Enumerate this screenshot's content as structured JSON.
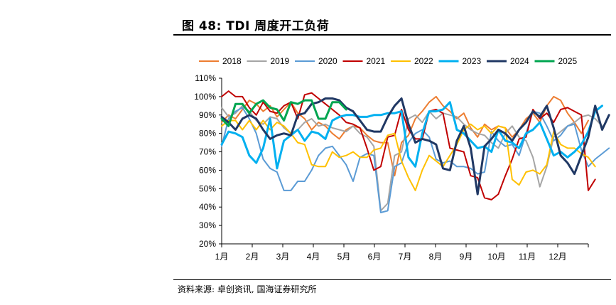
{
  "figure": {
    "title": "图 48:  TDI 周度开工负荷",
    "source": "资料来源: 卓创资讯, 国海证券研究所"
  },
  "chart_data": {
    "type": "line",
    "title": "",
    "xlabel": "",
    "ylabel": "",
    "ylim": [
      20,
      110
    ],
    "y_ticks": [
      "20%",
      "30%",
      "40%",
      "50%",
      "60%",
      "70%",
      "80%",
      "90%",
      "100%",
      "110%"
    ],
    "x_ticks": [
      "1月",
      "2月",
      "3月",
      "4月",
      "5月",
      "6月",
      "7月",
      "8月",
      "9月",
      "10月",
      "11月",
      "12月"
    ],
    "x_unit": "week",
    "legend_position": "top",
    "grid": false,
    "series": [
      {
        "name": "2018",
        "color": "#ED7D31",
        "values": [
          86,
          90,
          88,
          93,
          98,
          96,
          92,
          95,
          89,
          93,
          97,
          91,
          88,
          82,
          86,
          84,
          80,
          77,
          82,
          84,
          83,
          79,
          76,
          75,
          75,
          57,
          75,
          79,
          88,
          92,
          97,
          100,
          95,
          92,
          88,
          91,
          83,
          78,
          85,
          82,
          84,
          83,
          78,
          82,
          88,
          91,
          86,
          95,
          100,
          98,
          91,
          86,
          80,
          87
        ]
      },
      {
        "name": "2019",
        "color": "#A5A5A5",
        "values": [
          94,
          89,
          91,
          95,
          92,
          87,
          85,
          89,
          88,
          83,
          80,
          82,
          86,
          88,
          84,
          85,
          83,
          82,
          81,
          84,
          80,
          78,
          73,
          38,
          42,
          68,
          70,
          88,
          90,
          86,
          92,
          88,
          91,
          90,
          89,
          85,
          82,
          80,
          79,
          75,
          72,
          80,
          84,
          78,
          76,
          67,
          51,
          62,
          78,
          81,
          84,
          86,
          89,
          90,
          88,
          84
        ]
      },
      {
        "name": "2020",
        "color": "#5B9BD5",
        "values": [
          73,
          88,
          92,
          94,
          88,
          80,
          66,
          61,
          59,
          49,
          49,
          54,
          54,
          60,
          68,
          72,
          73,
          68,
          63,
          54,
          67,
          69,
          68,
          37,
          38,
          62,
          64,
          75,
          80,
          82,
          78,
          66,
          64,
          65,
          62,
          62,
          61,
          58,
          59,
          81,
          76,
          73,
          74,
          68,
          80,
          92,
          91,
          84,
          76,
          79,
          84,
          85,
          71,
          62,
          66,
          69,
          72
        ]
      },
      {
        "name": "2021",
        "color": "#C00000",
        "values": [
          100,
          103,
          100,
          100,
          94,
          90,
          97,
          92,
          91,
          95,
          97,
          88,
          101,
          102,
          99,
          96,
          93,
          90,
          86,
          85,
          83,
          72,
          60,
          62,
          78,
          79,
          93,
          82,
          77,
          77,
          92,
          93,
          91,
          72,
          71,
          70,
          57,
          56,
          45,
          44,
          47,
          57,
          66,
          77,
          78,
          93,
          88,
          91,
          86,
          93,
          94,
          92,
          90,
          49,
          55
        ]
      },
      {
        "name": "2022",
        "color": "#FFC000",
        "values": [
          84,
          87,
          87,
          82,
          87,
          82,
          87,
          82,
          86,
          84,
          80,
          75,
          74,
          63,
          62,
          62,
          70,
          67,
          68,
          70,
          67,
          67,
          71,
          72,
          79,
          80,
          65,
          56,
          49,
          60,
          68,
          65,
          62,
          68,
          74,
          82,
          85,
          82,
          84,
          80,
          84,
          83,
          55,
          52,
          59,
          60,
          58,
          63,
          81,
          74,
          72,
          72,
          69,
          67,
          62
        ]
      },
      {
        "name": "2023",
        "color": "#00B0F0",
        "values": [
          74,
          81,
          80,
          78,
          68,
          64,
          72,
          88,
          61,
          76,
          79,
          82,
          76,
          81,
          80,
          77,
          87,
          89,
          90,
          90,
          89,
          89,
          90,
          90,
          91,
          91,
          92,
          67,
          62,
          80,
          92,
          92,
          93,
          97,
          82,
          80,
          76,
          72,
          73,
          70,
          82,
          76,
          75,
          72,
          80,
          82,
          86,
          77,
          68,
          70,
          67,
          70,
          74,
          81,
          92,
          95
        ]
      },
      {
        "name": "2024",
        "color": "#203864",
        "values": [
          89,
          86,
          82,
          88,
          90,
          88,
          82,
          77,
          79,
          80,
          79,
          90,
          91,
          96,
          97,
          99,
          99,
          98,
          94,
          92,
          87,
          82,
          81,
          81,
          89,
          95,
          99,
          85,
          75,
          77,
          76,
          74,
          61,
          60,
          76,
          84,
          72,
          47,
          73,
          77,
          82,
          80,
          76,
          82,
          86,
          92,
          89,
          95,
          83,
          68,
          64,
          58,
          68,
          78,
          95,
          82,
          90
        ]
      },
      {
        "name": "2025",
        "color": "#00A550",
        "values": [
          88,
          84,
          96,
          96,
          91,
          96,
          98,
          94,
          93,
          87,
          97,
          96,
          98,
          98,
          88,
          88,
          97,
          97,
          93
        ]
      }
    ]
  }
}
